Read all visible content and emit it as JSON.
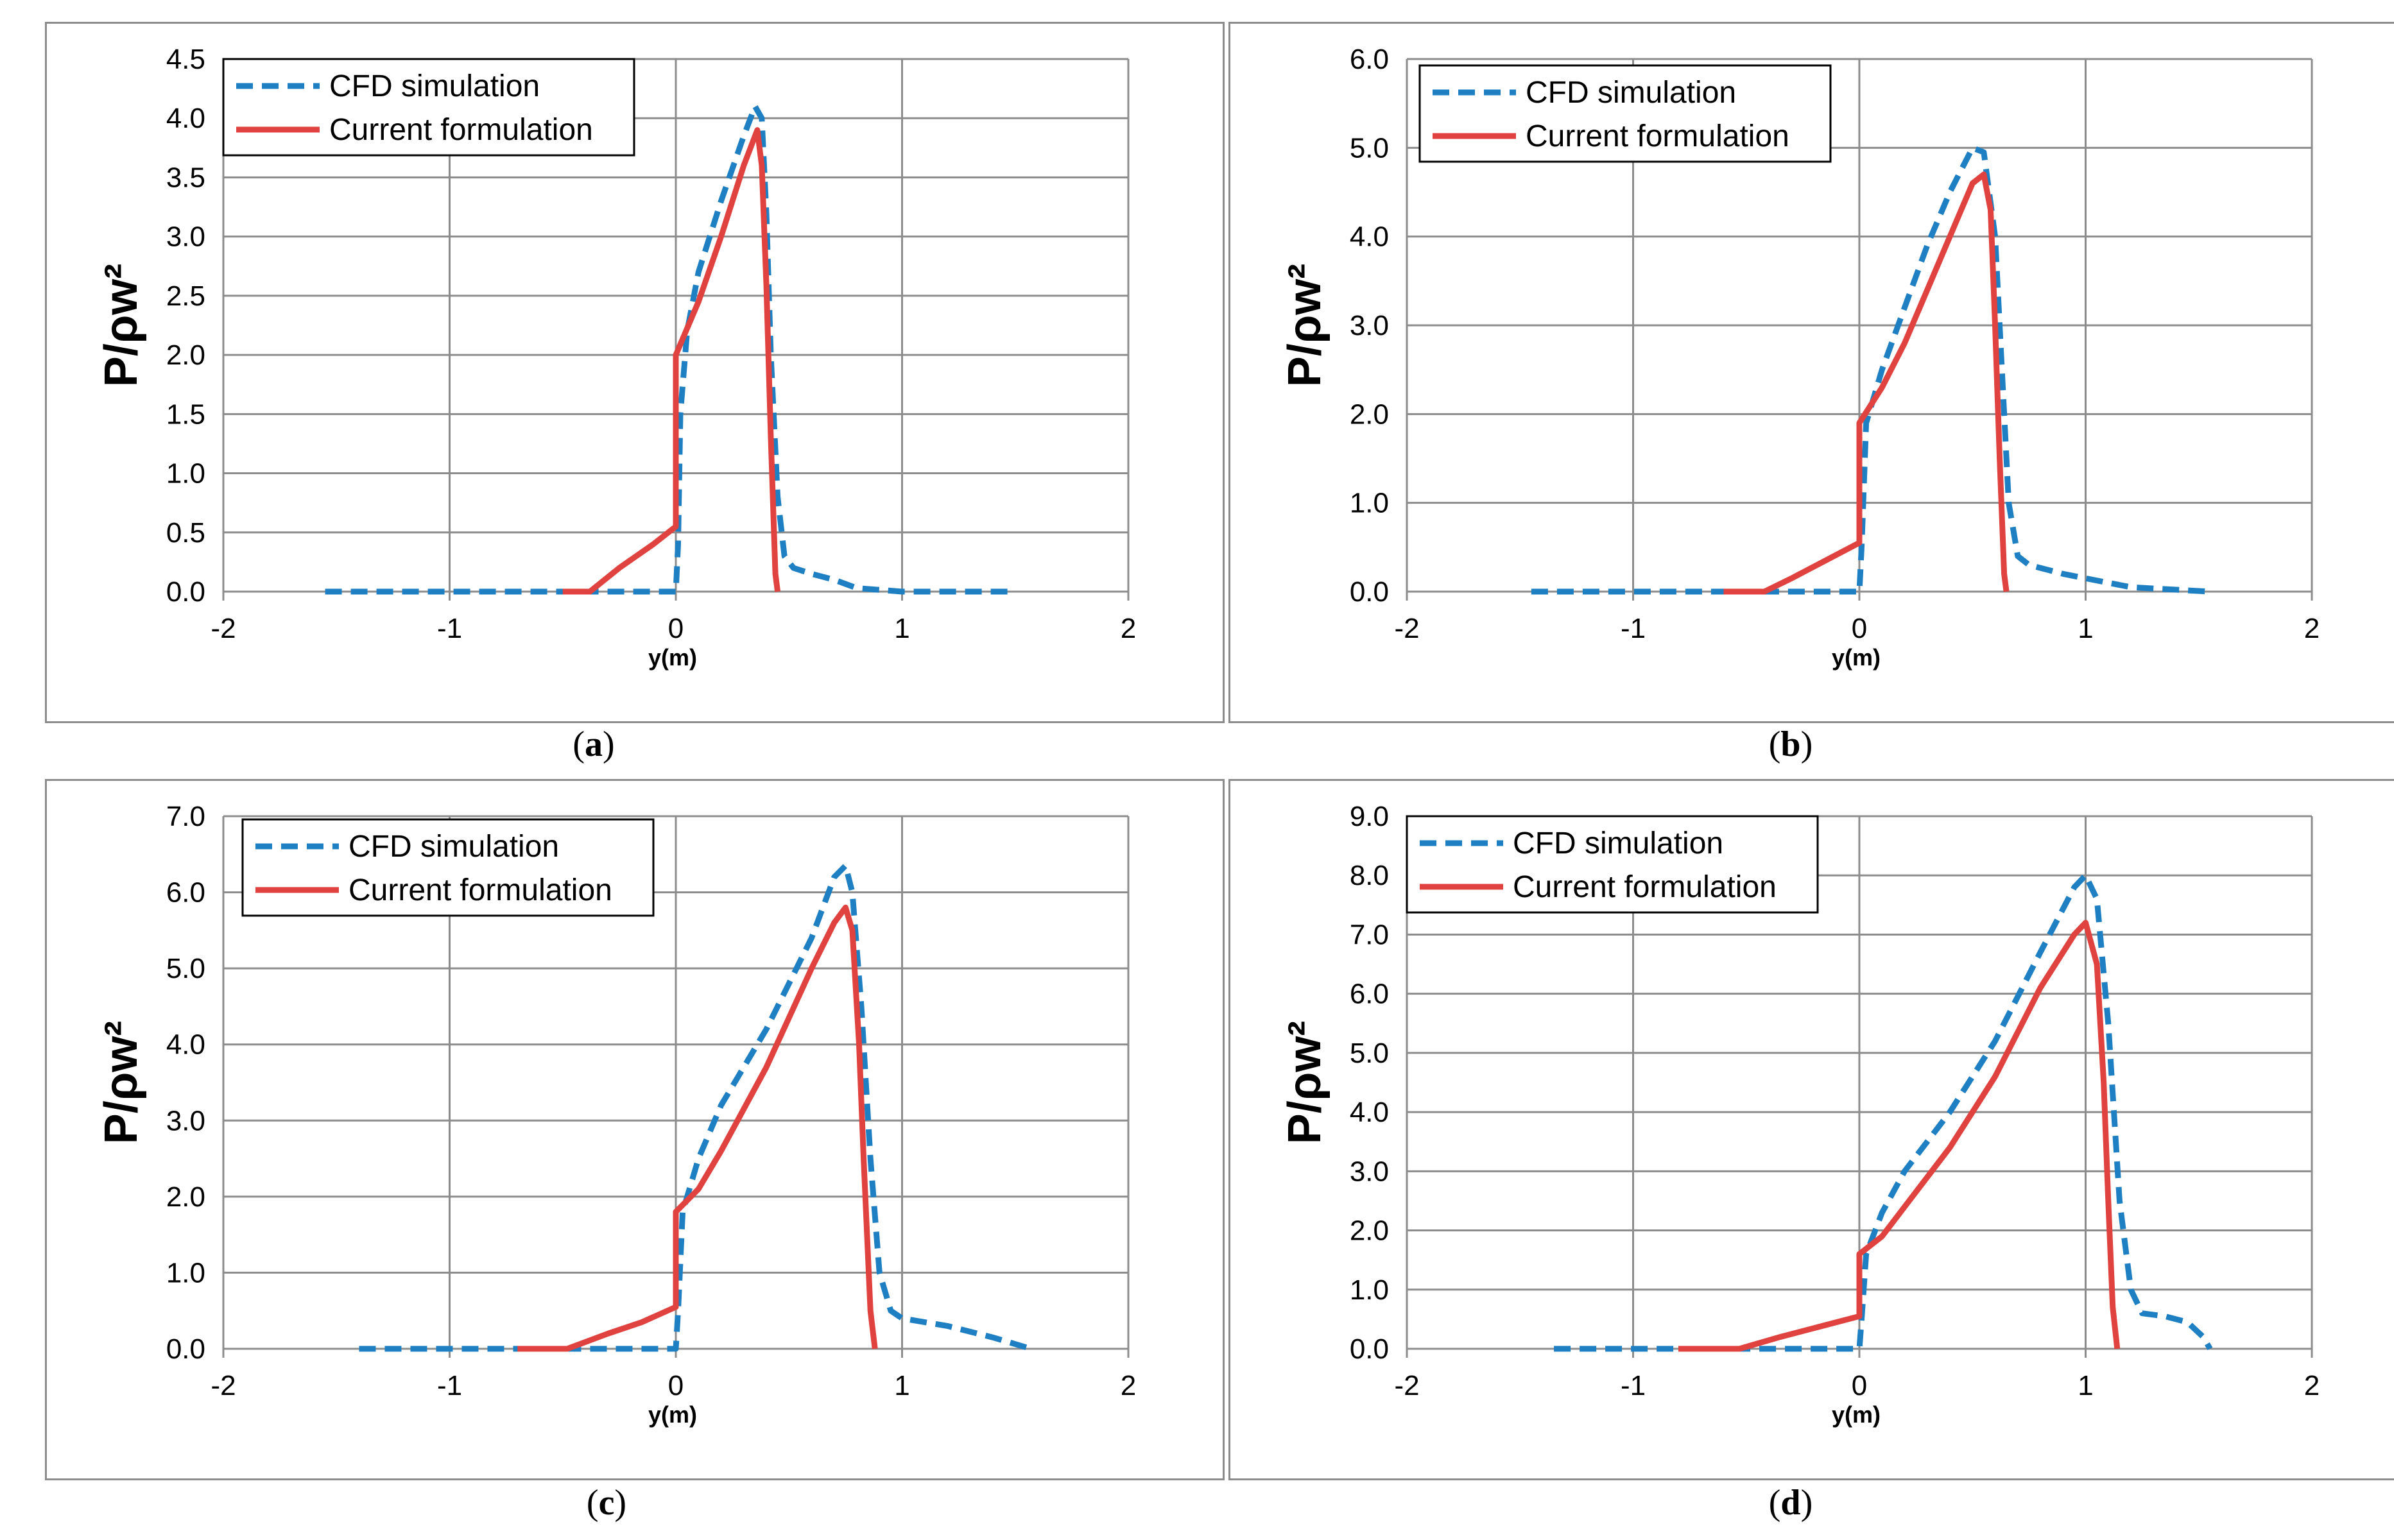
{
  "colors": {
    "cfd": "#1f7fc3",
    "current": "#e0423f",
    "grid": "#8c8c8c"
  },
  "legend": {
    "cfd": "CFD simulation",
    "current": "Current formulation"
  },
  "chart_data": [
    {
      "type": "line",
      "id": "a",
      "caption": "a",
      "ylabel": "P/ρw²",
      "xlabel": "y(m)",
      "xlim": [
        -2,
        2
      ],
      "ylim": [
        0,
        4.5
      ],
      "yticks": [
        0,
        0.5,
        1,
        1.5,
        2,
        2.5,
        3,
        3.5,
        4,
        4.5
      ],
      "ytick_labels": [
        "0.0",
        "0.5",
        "1.0",
        "1.5",
        "2.0",
        "2.5",
        "3.0",
        "3.5",
        "4.0",
        "4.5"
      ],
      "xticks": [
        -2,
        -1,
        0,
        1,
        2
      ],
      "xtick_labels": [
        "-2",
        "-1",
        "0",
        "1",
        "2"
      ],
      "series": [
        {
          "name": "CFD simulation",
          "style": "dashed",
          "x": [
            -1.55,
            -0.5,
            0.0,
            0.01,
            0.02,
            0.05,
            0.1,
            0.2,
            0.3,
            0.35,
            0.38,
            0.4,
            0.42,
            0.45,
            0.48,
            0.52,
            0.6,
            0.7,
            0.8,
            1.0,
            1.5
          ],
          "y": [
            0,
            0,
            0,
            0.4,
            1.5,
            2.2,
            2.7,
            3.3,
            3.85,
            4.1,
            4.0,
            3.2,
            2.0,
            0.8,
            0.3,
            0.2,
            0.15,
            0.1,
            0.03,
            0,
            0
          ]
        },
        {
          "name": "Current formulation",
          "style": "solid",
          "x": [
            -0.5,
            -0.38,
            -0.25,
            -0.1,
            0.0,
            0.0,
            0.1,
            0.2,
            0.3,
            0.36,
            0.38,
            0.4,
            0.42,
            0.44,
            0.45
          ],
          "y": [
            0,
            0,
            0.2,
            0.4,
            0.55,
            2.0,
            2.45,
            3.0,
            3.6,
            3.9,
            3.6,
            2.6,
            1.3,
            0.15,
            0
          ]
        }
      ]
    },
    {
      "type": "line",
      "id": "b",
      "caption": "b",
      "ylabel": "P/ρw²",
      "xlabel": "y(m)",
      "xlim": [
        -2,
        2
      ],
      "ylim": [
        0,
        6
      ],
      "yticks": [
        0,
        1,
        2,
        3,
        4,
        5,
        6
      ],
      "ytick_labels": [
        "0.0",
        "1.0",
        "2.0",
        "3.0",
        "4.0",
        "5.0",
        "6.0"
      ],
      "xticks": [
        -2,
        -1,
        0,
        1,
        2
      ],
      "xtick_labels": [
        "-2",
        "-1",
        "0",
        "1",
        "2"
      ],
      "series": [
        {
          "name": "CFD simulation",
          "style": "dashed",
          "x": [
            -1.45,
            -0.6,
            0.0,
            0.01,
            0.03,
            0.1,
            0.2,
            0.3,
            0.4,
            0.5,
            0.55,
            0.6,
            0.63,
            0.66,
            0.7,
            0.75,
            0.9,
            1.0,
            1.2,
            1.55
          ],
          "y": [
            0,
            0,
            0,
            0.5,
            1.9,
            2.5,
            3.2,
            3.9,
            4.5,
            5.0,
            4.95,
            4.0,
            2.5,
            1.0,
            0.4,
            0.3,
            0.2,
            0.15,
            0.05,
            0
          ]
        },
        {
          "name": "Current formulation",
          "style": "solid",
          "x": [
            -0.6,
            -0.42,
            -0.3,
            -0.15,
            0.0,
            0.0,
            0.1,
            0.2,
            0.3,
            0.4,
            0.5,
            0.55,
            0.58,
            0.6,
            0.62,
            0.64,
            0.65
          ],
          "y": [
            0,
            0,
            0.15,
            0.35,
            0.55,
            1.9,
            2.3,
            2.8,
            3.4,
            4.0,
            4.6,
            4.7,
            4.3,
            3.0,
            1.5,
            0.2,
            0
          ]
        }
      ]
    },
    {
      "type": "line",
      "id": "c",
      "caption": "c",
      "ylabel": "P/ρw²",
      "xlabel": "y(m)",
      "xlim": [
        -2,
        2
      ],
      "ylim": [
        0,
        7
      ],
      "yticks": [
        0,
        1,
        2,
        3,
        4,
        5,
        6,
        7
      ],
      "ytick_labels": [
        "0.0",
        "1.0",
        "2.0",
        "3.0",
        "4.0",
        "5.0",
        "6.0",
        "7.0"
      ],
      "xticks": [
        -2,
        -1,
        0,
        1,
        2
      ],
      "xtick_labels": [
        "-2",
        "-1",
        "0",
        "1",
        "2"
      ],
      "series": [
        {
          "name": "CFD simulation",
          "style": "dashed",
          "x": [
            -1.4,
            -0.7,
            0.0,
            0.01,
            0.03,
            0.1,
            0.2,
            0.4,
            0.6,
            0.7,
            0.75,
            0.78,
            0.82,
            0.86,
            0.9,
            0.95,
            1.0,
            1.2,
            1.4,
            1.57
          ],
          "y": [
            0,
            0,
            0,
            0.5,
            1.8,
            2.5,
            3.2,
            4.2,
            5.4,
            6.2,
            6.35,
            6.0,
            4.5,
            2.5,
            1.0,
            0.5,
            0.4,
            0.3,
            0.15,
            0
          ]
        },
        {
          "name": "Current formulation",
          "style": "solid",
          "x": [
            -0.7,
            -0.48,
            -0.3,
            -0.15,
            0.0,
            0.0,
            0.1,
            0.2,
            0.4,
            0.6,
            0.7,
            0.75,
            0.78,
            0.81,
            0.83,
            0.86,
            0.88
          ],
          "y": [
            0,
            0,
            0.2,
            0.35,
            0.55,
            1.8,
            2.1,
            2.6,
            3.7,
            5.0,
            5.6,
            5.8,
            5.5,
            4.0,
            2.5,
            0.5,
            0
          ]
        }
      ]
    },
    {
      "type": "line",
      "id": "d",
      "caption": "d",
      "ylabel": "P/ρw²",
      "xlabel": "y(m)",
      "xlim": [
        -2,
        2
      ],
      "ylim": [
        0,
        9
      ],
      "yticks": [
        0,
        1,
        2,
        3,
        4,
        5,
        6,
        7,
        8,
        9
      ],
      "ytick_labels": [
        "0.0",
        "1.0",
        "2.0",
        "3.0",
        "4.0",
        "5.0",
        "6.0",
        "7.0",
        "8.0",
        "9.0"
      ],
      "xticks": [
        -2,
        -1,
        0,
        1,
        2
      ],
      "xtick_labels": [
        "-2",
        "-1",
        "0",
        "1",
        "2"
      ],
      "series": [
        {
          "name": "CFD simulation",
          "style": "dashed",
          "x": [
            -1.35,
            -0.8,
            0.0,
            0.01,
            0.03,
            0.1,
            0.2,
            0.4,
            0.6,
            0.8,
            0.95,
            1.0,
            1.05,
            1.1,
            1.15,
            1.2,
            1.25,
            1.35,
            1.45,
            1.52,
            1.55
          ],
          "y": [
            0,
            0,
            0,
            0.5,
            1.6,
            2.3,
            3.0,
            4.0,
            5.2,
            6.7,
            7.8,
            8.0,
            7.6,
            5.5,
            2.5,
            1.0,
            0.6,
            0.55,
            0.45,
            0.2,
            0
          ]
        },
        {
          "name": "Current formulation",
          "style": "solid",
          "x": [
            -0.8,
            -0.53,
            -0.35,
            -0.15,
            0.0,
            0.0,
            0.1,
            0.2,
            0.4,
            0.6,
            0.8,
            0.95,
            1.0,
            1.05,
            1.08,
            1.1,
            1.12,
            1.14
          ],
          "y": [
            0,
            0,
            0.2,
            0.4,
            0.55,
            1.6,
            1.9,
            2.4,
            3.4,
            4.6,
            6.1,
            7.0,
            7.2,
            6.5,
            4.5,
            2.5,
            0.7,
            0
          ]
        }
      ]
    }
  ]
}
